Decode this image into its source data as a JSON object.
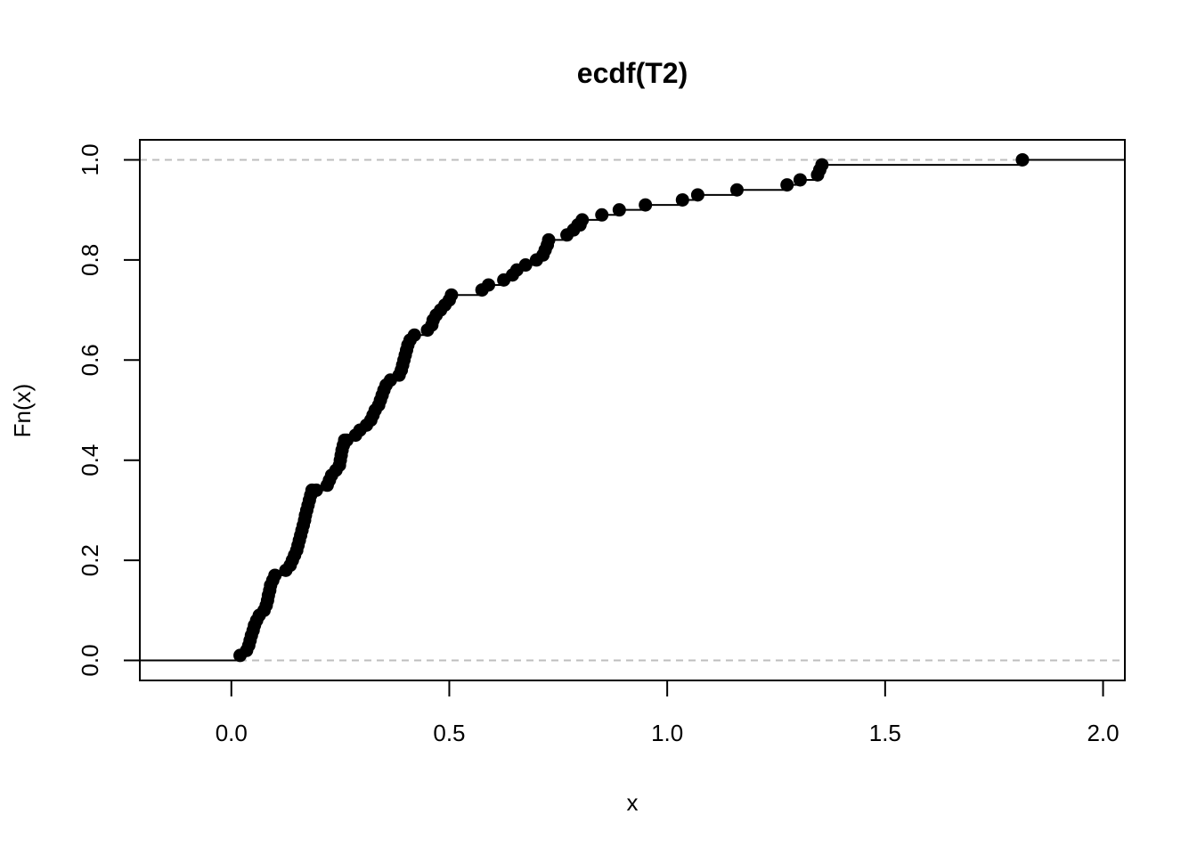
{
  "chart_data": {
    "type": "scatter",
    "subtype": "ecdf-step",
    "title": "ecdf(T2)",
    "xlabel": "x",
    "ylabel": "Fn(x)",
    "xlim": [
      -0.21,
      2.05
    ],
    "ylim": [
      -0.04,
      1.04
    ],
    "xticks": [
      0.0,
      0.5,
      1.0,
      1.5,
      2.0
    ],
    "xtick_labels": [
      "0.0",
      "0.5",
      "1.0",
      "1.5",
      "2.0"
    ],
    "yticks": [
      0.0,
      0.2,
      0.4,
      0.6,
      0.8,
      1.0
    ],
    "ytick_labels": [
      "0.0",
      "0.2",
      "0.4",
      "0.6",
      "0.8",
      "1.0"
    ],
    "reference_lines_y": [
      0.0,
      1.0
    ],
    "grid": false,
    "colors": {
      "points": "#000000",
      "steps": "#000000",
      "reference": "#bebebe",
      "frame": "#000000"
    },
    "x": [
      0.02,
      0.035,
      0.04,
      0.043,
      0.046,
      0.05,
      0.053,
      0.058,
      0.064,
      0.075,
      0.08,
      0.083,
      0.085,
      0.088,
      0.09,
      0.095,
      0.1,
      0.125,
      0.135,
      0.14,
      0.145,
      0.15,
      0.153,
      0.156,
      0.159,
      0.162,
      0.165,
      0.168,
      0.17,
      0.173,
      0.176,
      0.179,
      0.182,
      0.185,
      0.195,
      0.22,
      0.225,
      0.23,
      0.24,
      0.248,
      0.25,
      0.252,
      0.254,
      0.257,
      0.26,
      0.265,
      0.285,
      0.295,
      0.31,
      0.32,
      0.325,
      0.33,
      0.338,
      0.342,
      0.346,
      0.35,
      0.355,
      0.365,
      0.385,
      0.39,
      0.393,
      0.396,
      0.399,
      0.402,
      0.405,
      0.41,
      0.42,
      0.45,
      0.46,
      0.463,
      0.47,
      0.48,
      0.49,
      0.5,
      0.505,
      0.575,
      0.59,
      0.625,
      0.645,
      0.655,
      0.675,
      0.7,
      0.715,
      0.72,
      0.725,
      0.728,
      0.77,
      0.785,
      0.795,
      0.8,
      0.805,
      0.85,
      0.89,
      0.95,
      1.035,
      1.07,
      1.16,
      1.275,
      1.305,
      1.345,
      1.35,
      1.355,
      1.815
    ],
    "y": [
      0.01,
      0.02,
      0.03,
      0.04,
      0.05,
      0.06,
      0.07,
      0.08,
      0.09,
      0.1,
      0.11,
      0.12,
      0.13,
      0.14,
      0.15,
      0.16,
      0.17,
      0.18,
      0.19,
      0.2,
      0.21,
      0.22,
      0.23,
      0.24,
      0.25,
      0.26,
      0.27,
      0.28,
      0.29,
      0.3,
      0.31,
      0.32,
      0.33,
      0.34,
      0.34,
      0.35,
      0.36,
      0.37,
      0.38,
      0.39,
      0.4,
      0.41,
      0.42,
      0.43,
      0.44,
      0.44,
      0.45,
      0.46,
      0.47,
      0.48,
      0.49,
      0.5,
      0.51,
      0.52,
      0.53,
      0.54,
      0.55,
      0.56,
      0.57,
      0.58,
      0.59,
      0.6,
      0.61,
      0.62,
      0.63,
      0.64,
      0.65,
      0.66,
      0.67,
      0.68,
      0.69,
      0.7,
      0.71,
      0.72,
      0.73,
      0.74,
      0.75,
      0.76,
      0.77,
      0.78,
      0.79,
      0.8,
      0.81,
      0.82,
      0.83,
      0.84,
      0.85,
      0.86,
      0.87,
      0.87,
      0.88,
      0.89,
      0.9,
      0.91,
      0.92,
      0.93,
      0.94,
      0.95,
      0.96,
      0.97,
      0.98,
      0.99,
      1.0
    ]
  }
}
